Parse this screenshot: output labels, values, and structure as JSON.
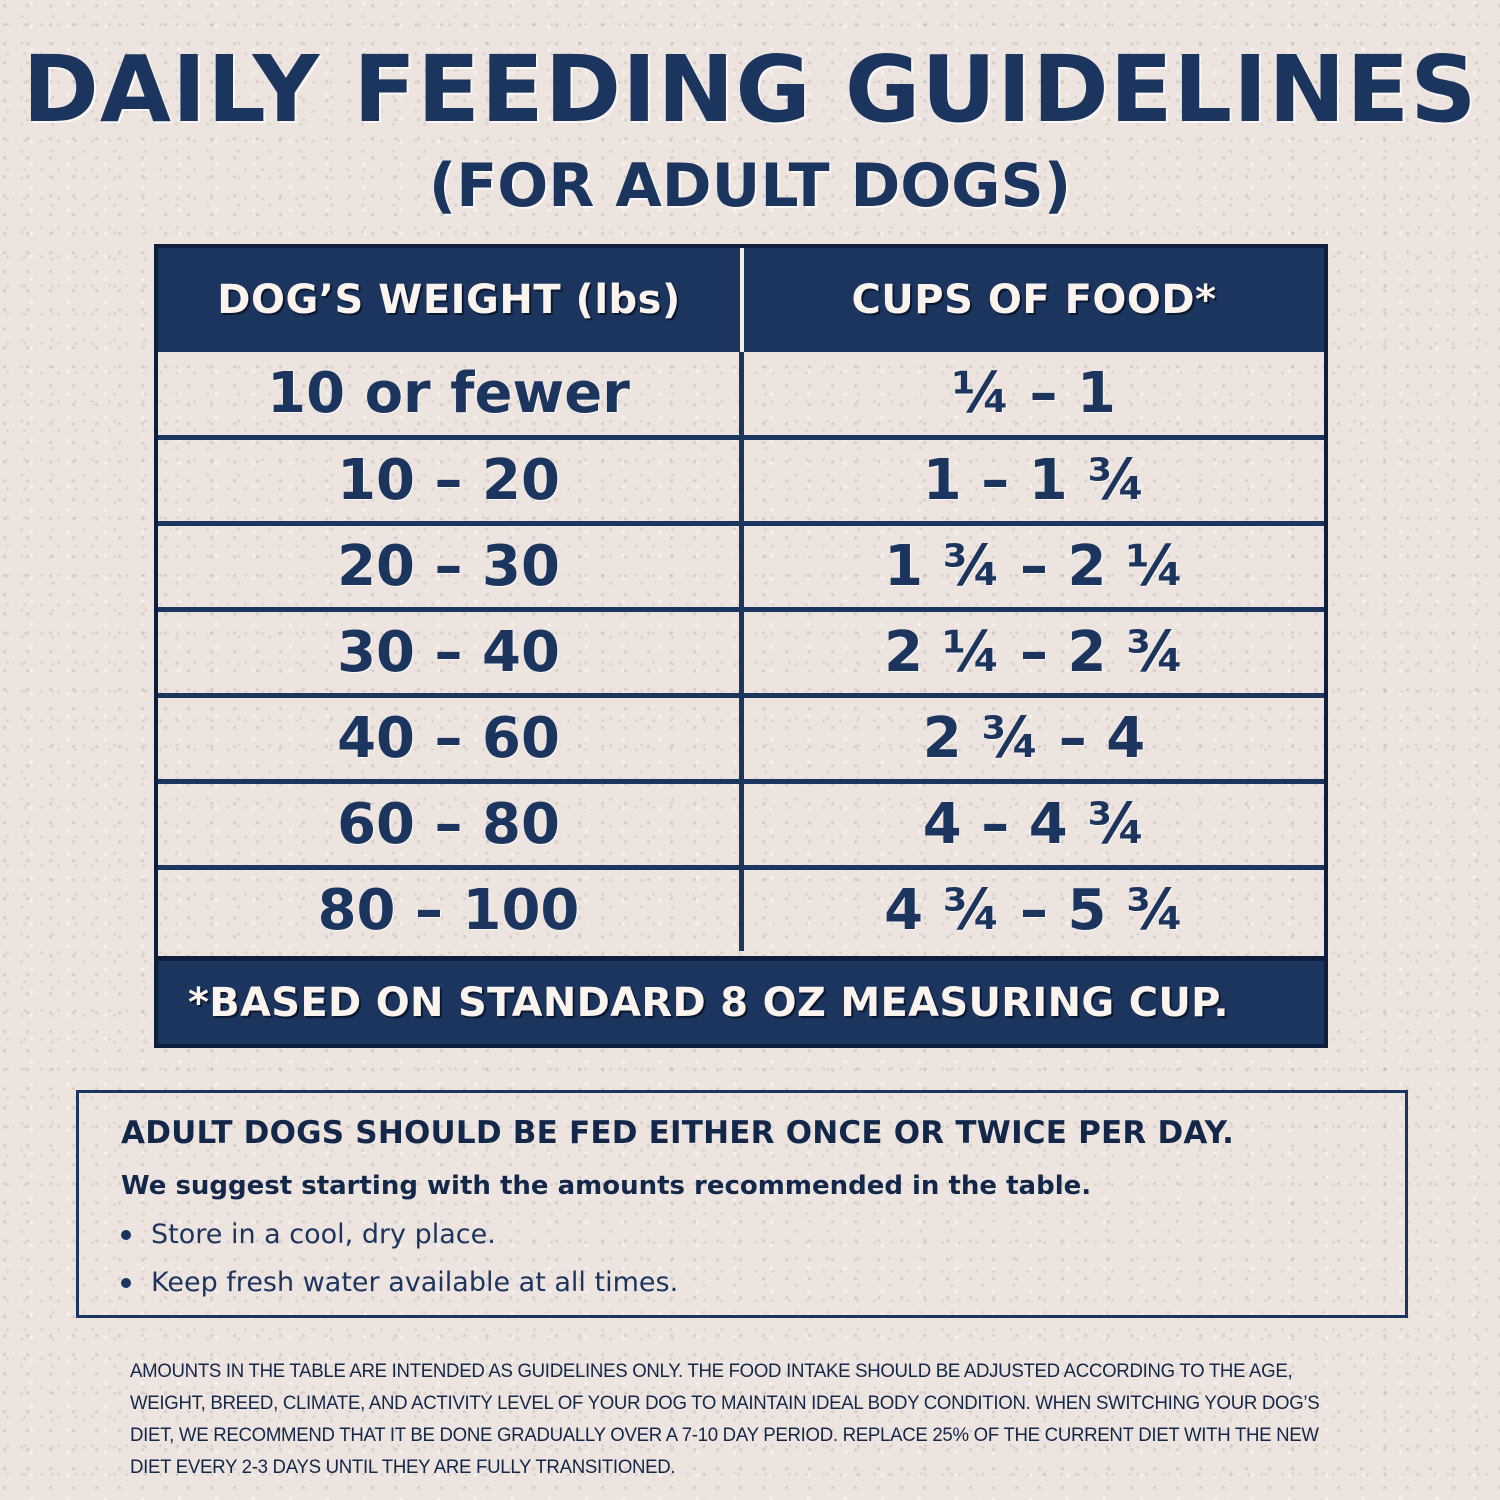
{
  "header": {
    "title": "DAILY FEEDING GUIDELINES",
    "subtitle": "(FOR ADULT DOGS)"
  },
  "table": {
    "columns": [
      "DOG’S WEIGHT (lbs)",
      "CUPS OF FOOD*"
    ],
    "rows": [
      {
        "weight": "10 or fewer",
        "cups": "¼ – 1"
      },
      {
        "weight": "10 – 20",
        "cups": "1 – 1 ¾"
      },
      {
        "weight": "20 – 30",
        "cups": "1 ¾ – 2 ¼"
      },
      {
        "weight": "30 – 40",
        "cups": "2 ¼ – 2 ¾"
      },
      {
        "weight": "40 – 60",
        "cups": "2 ¾ – 4"
      },
      {
        "weight": "60 – 80",
        "cups": "4 – 4 ¾"
      },
      {
        "weight": "80 – 100",
        "cups": "4 ¾ – 5 ¾"
      }
    ],
    "footnote": "*BASED ON STANDARD 8 OZ MEASURING CUP."
  },
  "notes": {
    "headline": "ADULT DOGS SHOULD BE FED EITHER ONCE OR TWICE PER DAY.",
    "lead": "We suggest starting with the amounts recommended in the table.",
    "bullets": [
      "Store in a cool, dry place.",
      "Keep fresh water available at all times."
    ]
  },
  "disclaimer": "AMOUNTS IN THE TABLE ARE INTENDED AS GUIDELINES ONLY. THE FOOD INTAKE SHOULD BE ADJUSTED ACCORDING TO THE AGE, WEIGHT, BREED, CLIMATE, AND ACTIVITY LEVEL OF YOUR DOG TO MAINTAIN IDEAL BODY CONDITION. WHEN SWITCHING YOUR DOG’S DIET, WE RECOMMEND THAT IT BE DONE GRADUALLY OVER A 7-10 DAY PERIOD. REPLACE 25% OF THE CURRENT DIET WITH THE NEW DIET EVERY 2-3 DAYS UNTIL THEY ARE FULLY TRANSITIONED.",
  "colors": {
    "navy": "#1b355f",
    "background": "#ede4df",
    "header_text": "#fbf4ee"
  }
}
